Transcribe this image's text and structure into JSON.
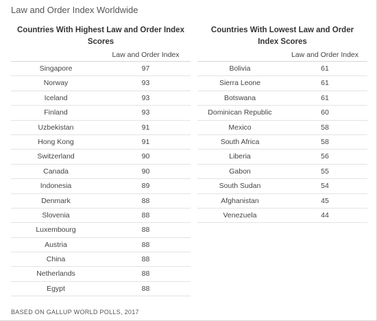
{
  "title": "Law and Order Index Worldwide",
  "footer": "BASED ON GALLUP WORLD POLLS, 2017",
  "left": {
    "header": "Countries With Highest Law and Order Index Scores",
    "column": "Law and Order Index"
  },
  "right": {
    "header": "Countries With Lowest Law and Order Index Scores",
    "column": "Law and Order Index"
  },
  "chart_data": [
    {
      "type": "table",
      "title": "Countries With Highest Law and Order Index Scores",
      "columns": [
        "",
        "Law and Order Index"
      ],
      "rows": [
        [
          "Singapore",
          "97"
        ],
        [
          "Norway",
          "93"
        ],
        [
          "Iceland",
          "93"
        ],
        [
          "Finland",
          "93"
        ],
        [
          "Uzbekistan",
          "91"
        ],
        [
          "Hong Kong",
          "91"
        ],
        [
          "Switzerland",
          "90"
        ],
        [
          "Canada",
          "90"
        ],
        [
          "Indonesia",
          "89"
        ],
        [
          "Denmark",
          "88"
        ],
        [
          "Slovenia",
          "88"
        ],
        [
          "Luxembourg",
          "88"
        ],
        [
          "Austria",
          "88"
        ],
        [
          "China",
          "88"
        ],
        [
          "Netherlands",
          "88"
        ],
        [
          "Egypt",
          "88"
        ]
      ]
    },
    {
      "type": "table",
      "title": "Countries With Lowest Law and Order Index Scores",
      "columns": [
        "",
        "Law and Order Index"
      ],
      "rows": [
        [
          "Bolivia",
          "61"
        ],
        [
          "Sierra Leone",
          "61"
        ],
        [
          "Botswana",
          "61"
        ],
        [
          "Dominican Republic",
          "60"
        ],
        [
          "Mexico",
          "58"
        ],
        [
          "South Africa",
          "58"
        ],
        [
          "Liberia",
          "56"
        ],
        [
          "Gabon",
          "55"
        ],
        [
          "South Sudan",
          "54"
        ],
        [
          "Afghanistan",
          "45"
        ],
        [
          "Venezuela",
          "44"
        ]
      ]
    }
  ]
}
